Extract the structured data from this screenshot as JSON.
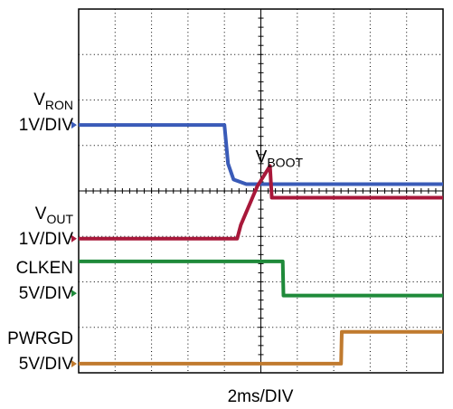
{
  "chart_data": {
    "type": "line",
    "title": "",
    "xlabel": "2ms/DIV",
    "grid": true,
    "x_divisions": 10,
    "y_divisions": 8,
    "series": [
      {
        "name": "VRON",
        "label_main": "V",
        "label_sub": "RON",
        "scale": "1V/DIV",
        "color": "#3a5bb8",
        "marker_div": 2.55,
        "points": [
          [
            0,
            2.55
          ],
          [
            4.0,
            2.55
          ],
          [
            4.1,
            3.4
          ],
          [
            4.25,
            3.75
          ],
          [
            4.6,
            3.85
          ],
          [
            10,
            3.85
          ]
        ]
      },
      {
        "name": "VOUT",
        "label_main": "V",
        "label_sub": "OUT",
        "scale": "1V/DIV",
        "color": "#a8183a",
        "marker_div": 5.05,
        "annotation": {
          "main": "V",
          "sub": "BOOT",
          "x_div": 5.55,
          "y_div": 3.45
        },
        "points": [
          [
            0,
            5.05
          ],
          [
            4.35,
            5.05
          ],
          [
            4.45,
            4.75
          ],
          [
            4.9,
            3.9
          ],
          [
            5.25,
            3.45
          ],
          [
            5.3,
            4.15
          ],
          [
            10,
            4.15
          ]
        ]
      },
      {
        "name": "CLKEN",
        "label_main": "CLKEN",
        "label_sub": "",
        "scale": "5V/DIV",
        "color": "#1f8a3a",
        "marker_div": 6.25,
        "points": [
          [
            0,
            5.55
          ],
          [
            5.6,
            5.55
          ],
          [
            5.62,
            6.3
          ],
          [
            10,
            6.3
          ]
        ]
      },
      {
        "name": "PWRGD",
        "label_main": "PWRGD",
        "label_sub": "",
        "scale": "5V/DIV",
        "color": "#c07a2e",
        "marker_div": 7.8,
        "points": [
          [
            0,
            7.8
          ],
          [
            7.2,
            7.8
          ],
          [
            7.22,
            7.1
          ],
          [
            10,
            7.1
          ]
        ]
      }
    ]
  }
}
